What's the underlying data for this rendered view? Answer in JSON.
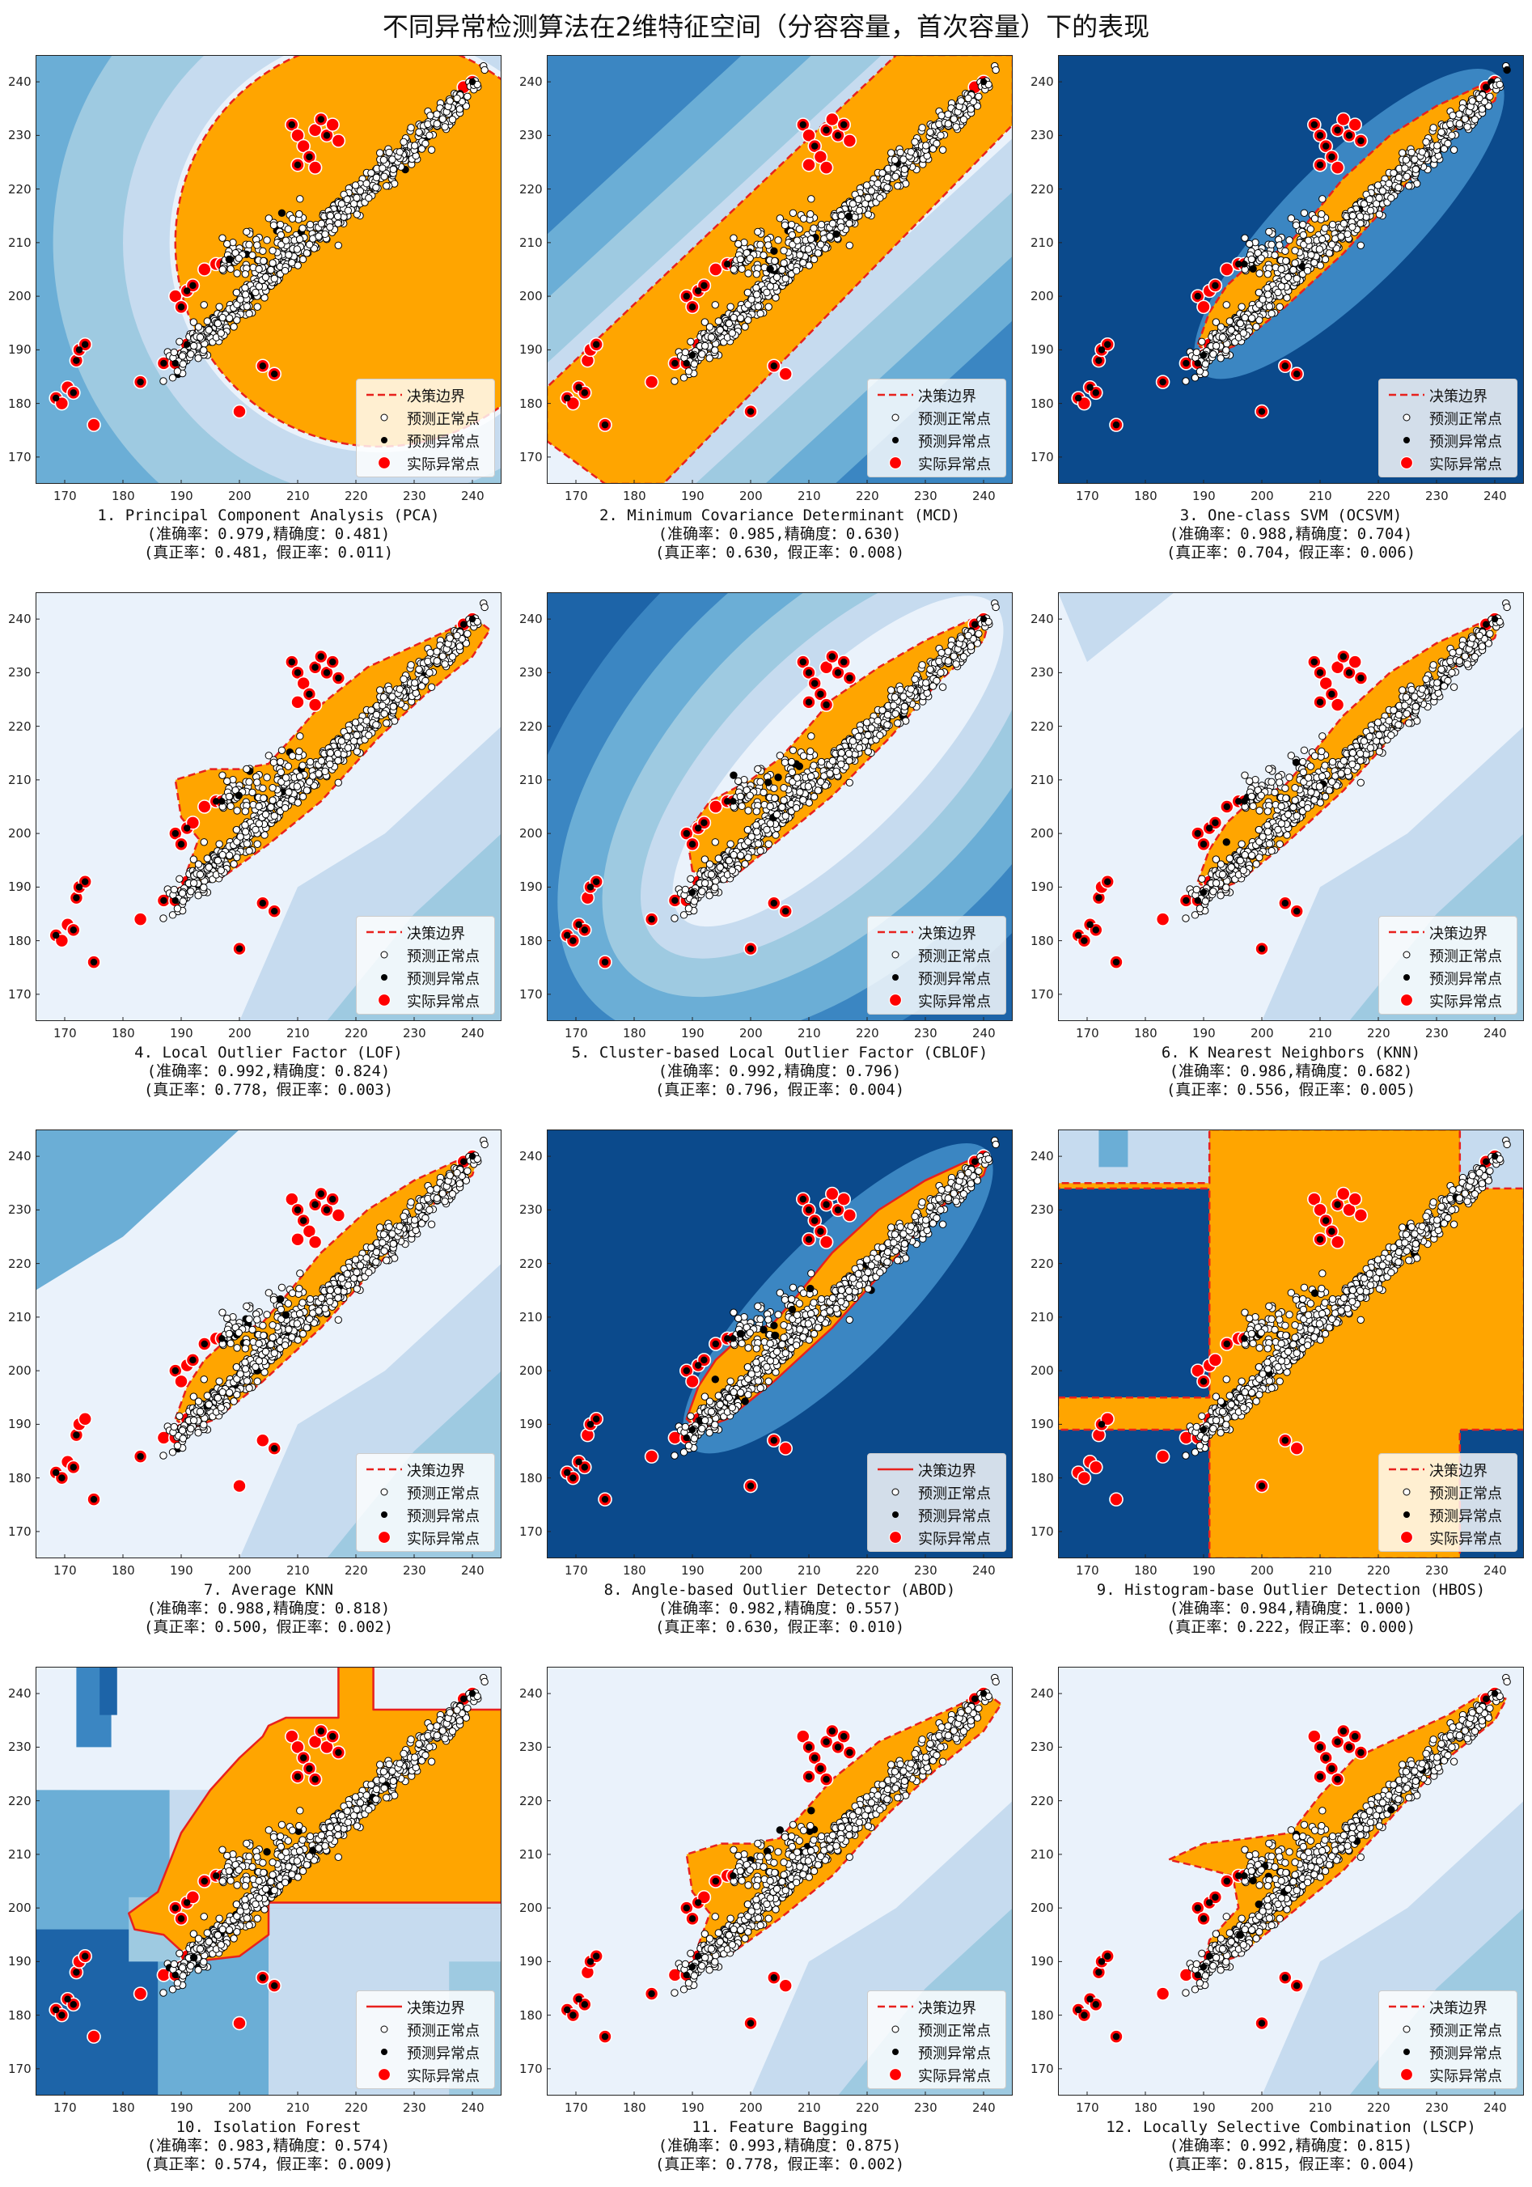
{
  "figure": {
    "title": "不同异常检测算法在2维特征空间（分容容量，首次容量）下的表现",
    "legend": {
      "boundary": "决策边界",
      "pred_normal": "预测正常点",
      "pred_outlier": "预测异常点",
      "true_outlier": "实际异常点"
    },
    "colors": {
      "inlier_region": "#ffa500",
      "boundary": "#e8211d",
      "true_outlier": "#ff0000",
      "pred_outlier": "#000000",
      "pred_normal": "#ffffff",
      "bg_levels": [
        "#eaf2fb",
        "#c6dbef",
        "#9ecae1",
        "#6baed6",
        "#3b86c2",
        "#1d64a8",
        "#0b4a8c"
      ]
    }
  },
  "chart_data": [
    {
      "index": 1,
      "type": "scatter",
      "name": "1. Principal Component Analysis (PCA)",
      "accuracy": "0.979",
      "precision": "0.481",
      "tpr": "0.481",
      "fpr": "0.011",
      "boundary_style": "dashed",
      "xlim": [
        165,
        245
      ],
      "ylim": [
        165,
        245
      ],
      "xticks": [
        170,
        180,
        190,
        200,
        210,
        220,
        230,
        240
      ],
      "yticks": [
        170,
        180,
        190,
        200,
        210,
        220,
        230,
        240
      ],
      "legend_position": "lower-right"
    },
    {
      "index": 2,
      "type": "scatter",
      "name": "2. Minimum Covariance Determinant (MCD)",
      "accuracy": "0.985",
      "precision": "0.630",
      "tpr": "0.630",
      "fpr": "0.008",
      "boundary_style": "dashed",
      "xlim": [
        165,
        245
      ],
      "ylim": [
        165,
        245
      ],
      "xticks": [
        170,
        180,
        190,
        200,
        210,
        220,
        230,
        240
      ],
      "yticks": [
        170,
        180,
        190,
        200,
        210,
        220,
        230,
        240
      ],
      "legend_position": "lower-right"
    },
    {
      "index": 3,
      "type": "scatter",
      "name": "3. One-class SVM (OCSVM)",
      "accuracy": "0.988",
      "precision": "0.704",
      "tpr": "0.704",
      "fpr": "0.006",
      "boundary_style": "dashed",
      "xlim": [
        165,
        245
      ],
      "ylim": [
        165,
        245
      ],
      "xticks": [
        170,
        180,
        190,
        200,
        210,
        220,
        230,
        240
      ],
      "yticks": [
        170,
        180,
        190,
        200,
        210,
        220,
        230,
        240
      ],
      "legend_position": "lower-right"
    },
    {
      "index": 4,
      "type": "scatter",
      "name": "4. Local Outlier Factor (LOF)",
      "accuracy": "0.992",
      "precision": "0.824",
      "tpr": "0.778",
      "fpr": "0.003",
      "boundary_style": "dashed",
      "xlim": [
        165,
        245
      ],
      "ylim": [
        165,
        245
      ],
      "xticks": [
        170,
        180,
        190,
        200,
        210,
        220,
        230,
        240
      ],
      "yticks": [
        170,
        180,
        190,
        200,
        210,
        220,
        230,
        240
      ],
      "legend_position": "lower-right"
    },
    {
      "index": 5,
      "type": "scatter",
      "name": "5. Cluster-based Local Outlier Factor (CBLOF)",
      "accuracy": "0.992",
      "precision": "0.796",
      "tpr": "0.796",
      "fpr": "0.004",
      "boundary_style": "dashed",
      "xlim": [
        165,
        245
      ],
      "ylim": [
        165,
        245
      ],
      "xticks": [
        170,
        180,
        190,
        200,
        210,
        220,
        230,
        240
      ],
      "yticks": [
        170,
        180,
        190,
        200,
        210,
        220,
        230,
        240
      ],
      "legend_position": "lower-right"
    },
    {
      "index": 6,
      "type": "scatter",
      "name": "6. K Nearest Neighbors (KNN)",
      "accuracy": "0.986",
      "precision": "0.682",
      "tpr": "0.556",
      "fpr": "0.005",
      "boundary_style": "dashed",
      "xlim": [
        165,
        245
      ],
      "ylim": [
        165,
        245
      ],
      "xticks": [
        170,
        180,
        190,
        200,
        210,
        220,
        230,
        240
      ],
      "yticks": [
        170,
        180,
        190,
        200,
        210,
        220,
        230,
        240
      ],
      "legend_position": "lower-right"
    },
    {
      "index": 7,
      "type": "scatter",
      "name": "7. Average KNN",
      "accuracy": "0.988",
      "precision": "0.818",
      "tpr": "0.500",
      "fpr": "0.002",
      "boundary_style": "dashed",
      "xlim": [
        165,
        245
      ],
      "ylim": [
        165,
        245
      ],
      "xticks": [
        170,
        180,
        190,
        200,
        210,
        220,
        230,
        240
      ],
      "yticks": [
        170,
        180,
        190,
        200,
        210,
        220,
        230,
        240
      ],
      "legend_position": "lower-right"
    },
    {
      "index": 8,
      "type": "scatter",
      "name": "8. Angle-based Outlier Detector (ABOD)",
      "accuracy": "0.982",
      "precision": "0.557",
      "tpr": "0.630",
      "fpr": "0.010",
      "boundary_style": "solid",
      "xlim": [
        165,
        245
      ],
      "ylim": [
        165,
        245
      ],
      "xticks": [
        170,
        180,
        190,
        200,
        210,
        220,
        230,
        240
      ],
      "yticks": [
        170,
        180,
        190,
        200,
        210,
        220,
        230,
        240
      ],
      "legend_position": "lower-right"
    },
    {
      "index": 9,
      "type": "scatter",
      "name": "9. Histogram-base Outlier Detection (HBOS)",
      "accuracy": "0.984",
      "precision": "1.000",
      "tpr": "0.222",
      "fpr": "0.000",
      "boundary_style": "dashed",
      "xlim": [
        165,
        245
      ],
      "ylim": [
        165,
        245
      ],
      "xticks": [
        170,
        180,
        190,
        200,
        210,
        220,
        230,
        240
      ],
      "yticks": [
        170,
        180,
        190,
        200,
        210,
        220,
        230,
        240
      ],
      "legend_position": "lower-right"
    },
    {
      "index": 10,
      "type": "scatter",
      "name": "10. Isolation Forest",
      "accuracy": "0.983",
      "precision": "0.574",
      "tpr": "0.574",
      "fpr": "0.009",
      "boundary_style": "solid",
      "xlim": [
        165,
        245
      ],
      "ylim": [
        165,
        245
      ],
      "xticks": [
        170,
        180,
        190,
        200,
        210,
        220,
        230,
        240
      ],
      "yticks": [
        170,
        180,
        190,
        200,
        210,
        220,
        230,
        240
      ],
      "legend_position": "lower-right"
    },
    {
      "index": 11,
      "type": "scatter",
      "name": "11. Feature Bagging",
      "accuracy": "0.993",
      "precision": "0.875",
      "tpr": "0.778",
      "fpr": "0.002",
      "boundary_style": "dashed",
      "xlim": [
        165,
        245
      ],
      "ylim": [
        165,
        245
      ],
      "xticks": [
        170,
        180,
        190,
        200,
        210,
        220,
        230,
        240
      ],
      "yticks": [
        170,
        180,
        190,
        200,
        210,
        220,
        230,
        240
      ],
      "legend_position": "lower-right"
    },
    {
      "index": 12,
      "type": "scatter",
      "name": "12. Locally Selective Combination (LSCP)",
      "accuracy": "0.992",
      "precision": "0.815",
      "tpr": "0.815",
      "fpr": "0.004",
      "boundary_style": "dashed",
      "xlim": [
        165,
        245
      ],
      "ylim": [
        165,
        245
      ],
      "xticks": [
        170,
        180,
        190,
        200,
        210,
        220,
        230,
        240
      ],
      "yticks": [
        170,
        180,
        190,
        200,
        210,
        220,
        230,
        240
      ],
      "legend_position": "lower-right"
    }
  ]
}
